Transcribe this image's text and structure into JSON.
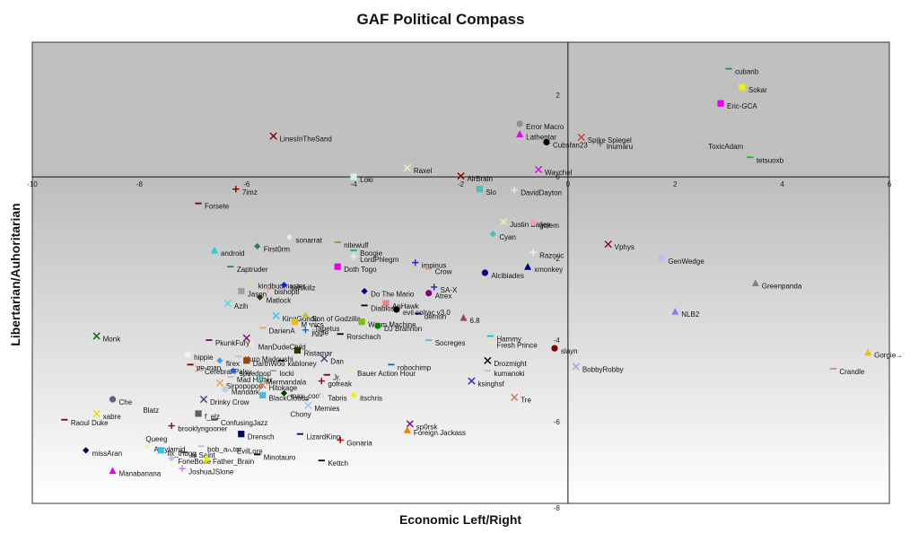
{
  "chart_data": {
    "type": "scatter",
    "title": "GAF Political Compass",
    "xlabel": "Economic Left/Right",
    "ylabel": "Libertarian/Auhoritarian",
    "xlim": [
      -10,
      6
    ],
    "ylim": [
      -8,
      3.3
    ],
    "x_ticks": [
      "-10",
      "-8",
      "-6",
      "-4",
      "-2",
      "0",
      "2",
      "4",
      "6"
    ],
    "y_ticks": [
      "2",
      "0",
      "-2",
      "-4",
      "-6",
      "-8"
    ],
    "grid": false,
    "legend": "none",
    "points": [
      {
        "label": "cubanb",
        "x": 3.0,
        "y": 2.65,
        "marker": "dash",
        "color": "#1e8a6e"
      },
      {
        "label": "Sokar",
        "x": 3.25,
        "y": 2.2,
        "marker": "square",
        "color": "#f0f000"
      },
      {
        "label": "Eric-GCA",
        "x": 2.85,
        "y": 1.8,
        "marker": "square",
        "color": "#e800e8"
      },
      {
        "label": "Error Macro",
        "x": -0.9,
        "y": 1.3,
        "marker": "circle",
        "color": "#909090"
      },
      {
        "label": "Lathentar",
        "x": -0.9,
        "y": 1.05,
        "marker": "triangle",
        "color": "#e800e8"
      },
      {
        "label": "Spike Spiegel",
        "x": 0.25,
        "y": 0.97,
        "marker": "x",
        "color": "#c04040"
      },
      {
        "label": "Cubsfan23",
        "x": -0.4,
        "y": 0.85,
        "marker": "circle",
        "color": "#000000"
      },
      {
        "label": "Inumaru",
        "x": 0.6,
        "y": 0.82,
        "marker": "plus",
        "color": "#707070"
      },
      {
        "label": "ToxicAdam",
        "x": 2.5,
        "y": 0.82,
        "marker": "dash",
        "color": "#e0b080"
      },
      {
        "label": "tetsuoxb",
        "x": 3.4,
        "y": 0.48,
        "marker": "dash",
        "color": "#00cc00"
      },
      {
        "label": "LinesInTheSand",
        "x": -5.5,
        "y": 1.0,
        "marker": "x",
        "color": "#800000"
      },
      {
        "label": "Raxel",
        "x": -3.0,
        "y": 0.22,
        "marker": "x",
        "color": "#f0f0c0"
      },
      {
        "label": "Waychel",
        "x": -0.55,
        "y": 0.18,
        "marker": "x",
        "color": "#e800e8"
      },
      {
        "label": "Loki",
        "x": -4.0,
        "y": 0.0,
        "marker": "square",
        "color": "#d0f0f0"
      },
      {
        "label": "AirBrain",
        "x": -2.0,
        "y": 0.02,
        "marker": "x",
        "color": "#800000"
      },
      {
        "label": "7imz",
        "x": -6.2,
        "y": -0.3,
        "marker": "plus",
        "color": "#800000"
      },
      {
        "label": "Slo",
        "x": -1.65,
        "y": -0.3,
        "marker": "square",
        "color": "#40c0c0"
      },
      {
        "label": "DavidDayton",
        "x": -1.0,
        "y": -0.32,
        "marker": "plus",
        "color": "#e0f0f0"
      },
      {
        "label": "Forsete",
        "x": -6.9,
        "y": -0.65,
        "marker": "dash",
        "color": "#800000"
      },
      {
        "label": "Justin Bailey",
        "x": -1.2,
        "y": -1.1,
        "marker": "x",
        "color": "#f0f0a0"
      },
      {
        "label": "golem",
        "x": -0.65,
        "y": -1.12,
        "marker": "circle",
        "color": "#f0a0b0"
      },
      {
        "label": "Cyan",
        "x": -1.4,
        "y": -1.4,
        "marker": "diamond",
        "color": "#40c0c0"
      },
      {
        "label": "sonarrat",
        "x": -5.2,
        "y": -1.48,
        "marker": "diamond",
        "color": "#e0f0f0"
      },
      {
        "label": "nitewulf",
        "x": -4.3,
        "y": -1.6,
        "marker": "dash",
        "color": "#80a040"
      },
      {
        "label": "Vphys",
        "x": 0.75,
        "y": -1.65,
        "marker": "x",
        "color": "#800040"
      },
      {
        "label": "android",
        "x": -6.6,
        "y": -1.8,
        "marker": "triangle",
        "color": "#20d0d0"
      },
      {
        "label": "First0rm",
        "x": -5.8,
        "y": -1.7,
        "marker": "diamond",
        "color": "#208070"
      },
      {
        "label": "Boogie",
        "x": -4.0,
        "y": -1.8,
        "marker": "dash",
        "color": "#00b0a0"
      },
      {
        "label": "Razoric",
        "x": -0.65,
        "y": -1.85,
        "marker": "plus",
        "color": "#f0f0f0"
      },
      {
        "label": "LordPhlegm",
        "x": -4.0,
        "y": -1.95,
        "marker": "plus",
        "color": "#f0f0f0"
      },
      {
        "label": "impinus",
        "x": -2.85,
        "y": -2.1,
        "marker": "plus",
        "color": "#2020c0"
      },
      {
        "label": "GenWedge",
        "x": 1.75,
        "y": -2.0,
        "marker": "square",
        "color": "#c0c0f0"
      },
      {
        "label": "Doth Togo",
        "x": -4.3,
        "y": -2.2,
        "marker": "square",
        "color": "#e800e8"
      },
      {
        "label": "Crow",
        "x": -2.6,
        "y": -2.25,
        "marker": "dash",
        "color": "#e08080"
      },
      {
        "label": "Zaptruder",
        "x": -6.3,
        "y": -2.2,
        "marker": "dash",
        "color": "#208070"
      },
      {
        "label": "xmonkey",
        "x": -0.75,
        "y": -2.2,
        "marker": "triangle",
        "color": "#000080"
      },
      {
        "label": "Alcibiades",
        "x": -1.55,
        "y": -2.35,
        "marker": "circle",
        "color": "#000080"
      },
      {
        "label": "Greenpanda",
        "x": 3.5,
        "y": -2.6,
        "marker": "triangle",
        "color": "#808080"
      },
      {
        "label": "kindbudmaster",
        "x": -5.9,
        "y": -2.6,
        "marker": "dash",
        "color": "#f0e080"
      },
      {
        "label": "sefskillz",
        "x": -5.3,
        "y": -2.65,
        "marker": "diamond",
        "color": "#2020c0"
      },
      {
        "label": "Jason",
        "x": -6.1,
        "y": -2.8,
        "marker": "square",
        "color": "#a0a0a0"
      },
      {
        "label": "bishoptl",
        "x": -5.6,
        "y": -2.75,
        "marker": "plus",
        "color": "#f0a0b0"
      },
      {
        "label": "Do The Mario",
        "x": -3.8,
        "y": -2.8,
        "marker": "diamond",
        "color": "#000080"
      },
      {
        "label": "SA-X",
        "x": -2.5,
        "y": -2.7,
        "marker": "plus",
        "color": "#2020c0"
      },
      {
        "label": "Atrex",
        "x": -2.6,
        "y": -2.85,
        "marker": "circle",
        "color": "#800080"
      },
      {
        "label": "Matlock",
        "x": -5.75,
        "y": -2.95,
        "marker": "diamond",
        "color": "#303000"
      },
      {
        "label": "Azih",
        "x": -6.35,
        "y": -3.1,
        "marker": "x",
        "color": "#40e0e0"
      },
      {
        "label": "AnHawk",
        "x": -3.4,
        "y": -3.1,
        "marker": "square",
        "color": "#f08080"
      },
      {
        "label": "Diablos",
        "x": -3.8,
        "y": -3.15,
        "marker": "dash",
        "color": "#000000"
      },
      {
        "label": "evil solrac v3.0",
        "x": -3.2,
        "y": -3.25,
        "marker": "circle",
        "color": "#000000"
      },
      {
        "label": "demon",
        "x": -2.8,
        "y": -3.35,
        "marker": "dash",
        "color": "#000080"
      },
      {
        "label": "NLB2",
        "x": 2.0,
        "y": -3.3,
        "marker": "triangle",
        "color": "#8080f0"
      },
      {
        "label": "KingGondo",
        "x": -5.45,
        "y": -3.4,
        "marker": "x",
        "color": "#40c0e0"
      },
      {
        "label": "Son of Godzilla",
        "x": -4.9,
        "y": -3.4,
        "marker": "diamond",
        "color": "#c0c040"
      },
      {
        "label": "6.8",
        "x": -1.95,
        "y": -3.45,
        "marker": "triangle",
        "color": "#a04060"
      },
      {
        "label": "Manics",
        "x": -5.1,
        "y": -3.55,
        "marker": "square",
        "color": "#f0c000"
      },
      {
        "label": "Tapetus",
        "x": -4.85,
        "y": -3.65,
        "marker": "triangle",
        "color": "#e0f0f0"
      },
      {
        "label": "Warm Machine",
        "x": -3.85,
        "y": -3.55,
        "marker": "square",
        "color": "#80c000"
      },
      {
        "label": "DJ Brannon",
        "x": -3.55,
        "y": -3.65,
        "marker": "circle",
        "color": "#008000"
      },
      {
        "label": "DarienA",
        "x": -5.7,
        "y": -3.7,
        "marker": "dash",
        "color": "#f0a040"
      },
      {
        "label": "jiggle",
        "x": -4.9,
        "y": -3.75,
        "marker": "plus",
        "color": "#2060c0"
      },
      {
        "label": "Rorschach",
        "x": -4.25,
        "y": -3.85,
        "marker": "dash",
        "color": "#000000"
      },
      {
        "label": "Hammy",
        "x": -1.45,
        "y": -3.9,
        "marker": "dash",
        "color": "#00c0e0"
      },
      {
        "label": "Monk",
        "x": -8.8,
        "y": -3.9,
        "marker": "x",
        "color": "#006000"
      },
      {
        "label": "PkunkFury",
        "x": -6.7,
        "y": -4.0,
        "marker": "dash",
        "color": "#800080"
      },
      {
        "label": "DarienA2",
        "x": -6.0,
        "y": -3.95,
        "marker": "x",
        "color": "#800080",
        "hide_label": true
      },
      {
        "label": "Socreges",
        "x": -2.6,
        "y": -4.0,
        "marker": "dash",
        "color": "#40c0e0"
      },
      {
        "label": "Fresh Prince",
        "x": -1.45,
        "y": -4.05,
        "marker": "dash",
        "color": "#f0f0a0"
      },
      {
        "label": "slayn",
        "x": -0.25,
        "y": -4.2,
        "marker": "circle",
        "color": "#800000"
      },
      {
        "label": "ManDudeChild",
        "x": -5.9,
        "y": -4.1,
        "marker": "plus",
        "color": "#f0f0c0"
      },
      {
        "label": "Ristamar",
        "x": -5.05,
        "y": -4.25,
        "marker": "square",
        "color": "#303000"
      },
      {
        "label": "Gorgie→",
        "x": 5.6,
        "y": -4.3,
        "marker": "triangle",
        "color": "#f0c000"
      },
      {
        "label": "hippie",
        "x": -7.1,
        "y": -4.35,
        "marker": "circle",
        "color": "#f0f0f0"
      },
      {
        "label": "Kuro Madoushi",
        "x": -6.15,
        "y": -4.4,
        "marker": "dash",
        "color": "#c0c0c0"
      },
      {
        "label": "Dan",
        "x": -4.55,
        "y": -4.45,
        "marker": "x",
        "color": "#404080"
      },
      {
        "label": "kabloney",
        "x": -5.35,
        "y": -4.5,
        "marker": "dash",
        "color": "#000000"
      },
      {
        "label": "firex",
        "x": -6.5,
        "y": -4.5,
        "marker": "diamond",
        "color": "#40a0f0"
      },
      {
        "label": "DarthWoo",
        "x": -6.0,
        "y": -4.5,
        "marker": "square",
        "color": "#a04000"
      },
      {
        "label": "Drozmight",
        "x": -1.5,
        "y": -4.5,
        "marker": "x",
        "color": "#000000"
      },
      {
        "label": "robochimp",
        "x": -3.3,
        "y": -4.6,
        "marker": "dash",
        "color": "#2060c0"
      },
      {
        "label": "BobbyRobby",
        "x": 0.15,
        "y": -4.65,
        "marker": "x",
        "color": "#a0a0e0"
      },
      {
        "label": "Cerebral Palsy",
        "x": -6.9,
        "y": -4.7,
        "marker": "x",
        "color": "#f0a0b0"
      },
      {
        "label": "pe-man",
        "x": -7.05,
        "y": -4.6,
        "marker": "dash",
        "color": "#800000"
      },
      {
        "label": "speedpop",
        "x": -6.25,
        "y": -4.75,
        "marker": "diamond",
        "color": "#2060f0"
      },
      {
        "label": "locki",
        "x": -5.5,
        "y": -4.75,
        "marker": "dash",
        "color": "#a0a0a0"
      },
      {
        "label": "Bauer Action Hour",
        "x": -4.05,
        "y": -4.75,
        "marker": "dash",
        "color": "#f0f0a0"
      },
      {
        "label": "kumanoki",
        "x": -1.5,
        "y": -4.75,
        "marker": "dash",
        "color": "#c0c0c0"
      },
      {
        "label": "Crandle",
        "x": 4.95,
        "y": -4.7,
        "marker": "dash",
        "color": "#e08080"
      },
      {
        "label": "Jr.",
        "x": -4.5,
        "y": -4.85,
        "marker": "dash",
        "color": "#800000"
      },
      {
        "label": "Mad Hatter",
        "x": -6.3,
        "y": -4.9,
        "marker": "dash",
        "color": "#c0c0c0"
      },
      {
        "label": "Mermandala",
        "x": -5.75,
        "y": -4.95,
        "marker": "x",
        "color": "#40c0c0"
      },
      {
        "label": "gofreak",
        "x": -4.6,
        "y": -5.0,
        "marker": "plus",
        "color": "#800040"
      },
      {
        "label": "ksinghsf",
        "x": -1.8,
        "y": -5.0,
        "marker": "x",
        "color": "#2020c0"
      },
      {
        "label": "Sirpopopop",
        "x": -6.5,
        "y": -5.05,
        "marker": "x",
        "color": "#f0a040"
      },
      {
        "label": "Hitokage",
        "x": -5.7,
        "y": -5.1,
        "marker": "x",
        "color": "#e07040"
      },
      {
        "label": "Mandark",
        "x": -6.4,
        "y": -5.2,
        "marker": "circle",
        "color": "#c0d0e0"
      },
      {
        "label": "max_cool",
        "x": -5.3,
        "y": -5.3,
        "marker": "diamond",
        "color": "#004000"
      },
      {
        "label": "BlackClouds",
        "x": -5.7,
        "y": -5.35,
        "marker": "square",
        "color": "#40c0e0"
      },
      {
        "label": "Tabris",
        "x": -4.6,
        "y": -5.35,
        "marker": "triangle",
        "color": "#e0e0e0"
      },
      {
        "label": "itschris",
        "x": -4.0,
        "y": -5.35,
        "marker": "diamond",
        "color": "#f0f000"
      },
      {
        "label": "Tre",
        "x": -1.0,
        "y": -5.4,
        "marker": "x",
        "color": "#e07040"
      },
      {
        "label": "Che",
        "x": -8.5,
        "y": -5.45,
        "marker": "circle",
        "color": "#606080"
      },
      {
        "label": "Drinky Crow",
        "x": -6.8,
        "y": -5.45,
        "marker": "x",
        "color": "#404080"
      },
      {
        "label": "Memies",
        "x": -4.85,
        "y": -5.6,
        "marker": "x",
        "color": "#a0c0f0"
      },
      {
        "label": "Chony",
        "x": -5.3,
        "y": -5.75,
        "marker": "triangle",
        "color": "#e0f0e0"
      },
      {
        "label": "Blatz",
        "x": -8.05,
        "y": -5.65,
        "marker": "dash",
        "color": "#f0f0f0"
      },
      {
        "label": "xabre",
        "x": -8.8,
        "y": -5.8,
        "marker": "x",
        "color": "#e0e000"
      },
      {
        "label": "f_elz",
        "x": -6.9,
        "y": -5.8,
        "marker": "square",
        "color": "#606060"
      },
      {
        "label": "Raoul Duke",
        "x": -9.4,
        "y": -5.95,
        "marker": "dash",
        "color": "#800000"
      },
      {
        "label": "ConfusingJazz",
        "x": -6.6,
        "y": -5.95,
        "marker": "dash",
        "color": "#404040"
      },
      {
        "label": "sp0rsk",
        "x": -2.95,
        "y": -6.05,
        "marker": "x",
        "color": "#800080"
      },
      {
        "label": "brooklyngooner",
        "x": -7.4,
        "y": -6.1,
        "marker": "plus",
        "color": "#800040"
      },
      {
        "label": "Foreign Jackass",
        "x": -3.0,
        "y": -6.2,
        "marker": "triangle",
        "color": "#f08000"
      },
      {
        "label": "Drensch",
        "x": -6.1,
        "y": -6.3,
        "marker": "square",
        "color": "#000060"
      },
      {
        "label": "LizardKing",
        "x": -5.0,
        "y": -6.3,
        "marker": "dash",
        "color": "#000080"
      },
      {
        "label": "Queeg",
        "x": -8.0,
        "y": -6.35,
        "marker": "triangle",
        "color": "#f0f0f0"
      },
      {
        "label": "Gonaria",
        "x": -4.25,
        "y": -6.45,
        "marker": "plus",
        "color": "#c00000"
      },
      {
        "label": "Acrylamid",
        "x": -7.85,
        "y": -6.6,
        "marker": "diamond",
        "color": "#f0f0c0"
      },
      {
        "label": "bob_arctor",
        "x": -6.85,
        "y": -6.6,
        "marker": "dash",
        "color": "#c0c0c0"
      },
      {
        "label": "EvilLore",
        "x": -6.3,
        "y": -6.65,
        "marker": "dash",
        "color": "#e0e0f0"
      },
      {
        "label": "fix_thugg",
        "x": -7.6,
        "y": -6.7,
        "marker": "square",
        "color": "#40c0e0"
      },
      {
        "label": "missAran",
        "x": -9.0,
        "y": -6.7,
        "marker": "diamond",
        "color": "#000060"
      },
      {
        "label": "ni Saint",
        "x": -7.15,
        "y": -6.75,
        "marker": "dash",
        "color": "#404040"
      },
      {
        "label": "Minotauro",
        "x": -5.8,
        "y": -6.8,
        "marker": "dash",
        "color": "#000000"
      },
      {
        "label": "FoneBone",
        "x": -7.4,
        "y": -6.9,
        "marker": "diamond",
        "color": "#c0c0f0"
      },
      {
        "label": "Father_Brain",
        "x": -6.75,
        "y": -6.9,
        "marker": "triangle",
        "color": "#f0f000"
      },
      {
        "label": "Kettch",
        "x": -4.6,
        "y": -6.95,
        "marker": "dash",
        "color": "#000000"
      },
      {
        "label": "JoshuaJSlone",
        "x": -7.2,
        "y": -7.15,
        "marker": "plus",
        "color": "#c080e0"
      },
      {
        "label": "Manabanana",
        "x": -8.5,
        "y": -7.2,
        "marker": "triangle",
        "color": "#e800e8"
      }
    ]
  }
}
